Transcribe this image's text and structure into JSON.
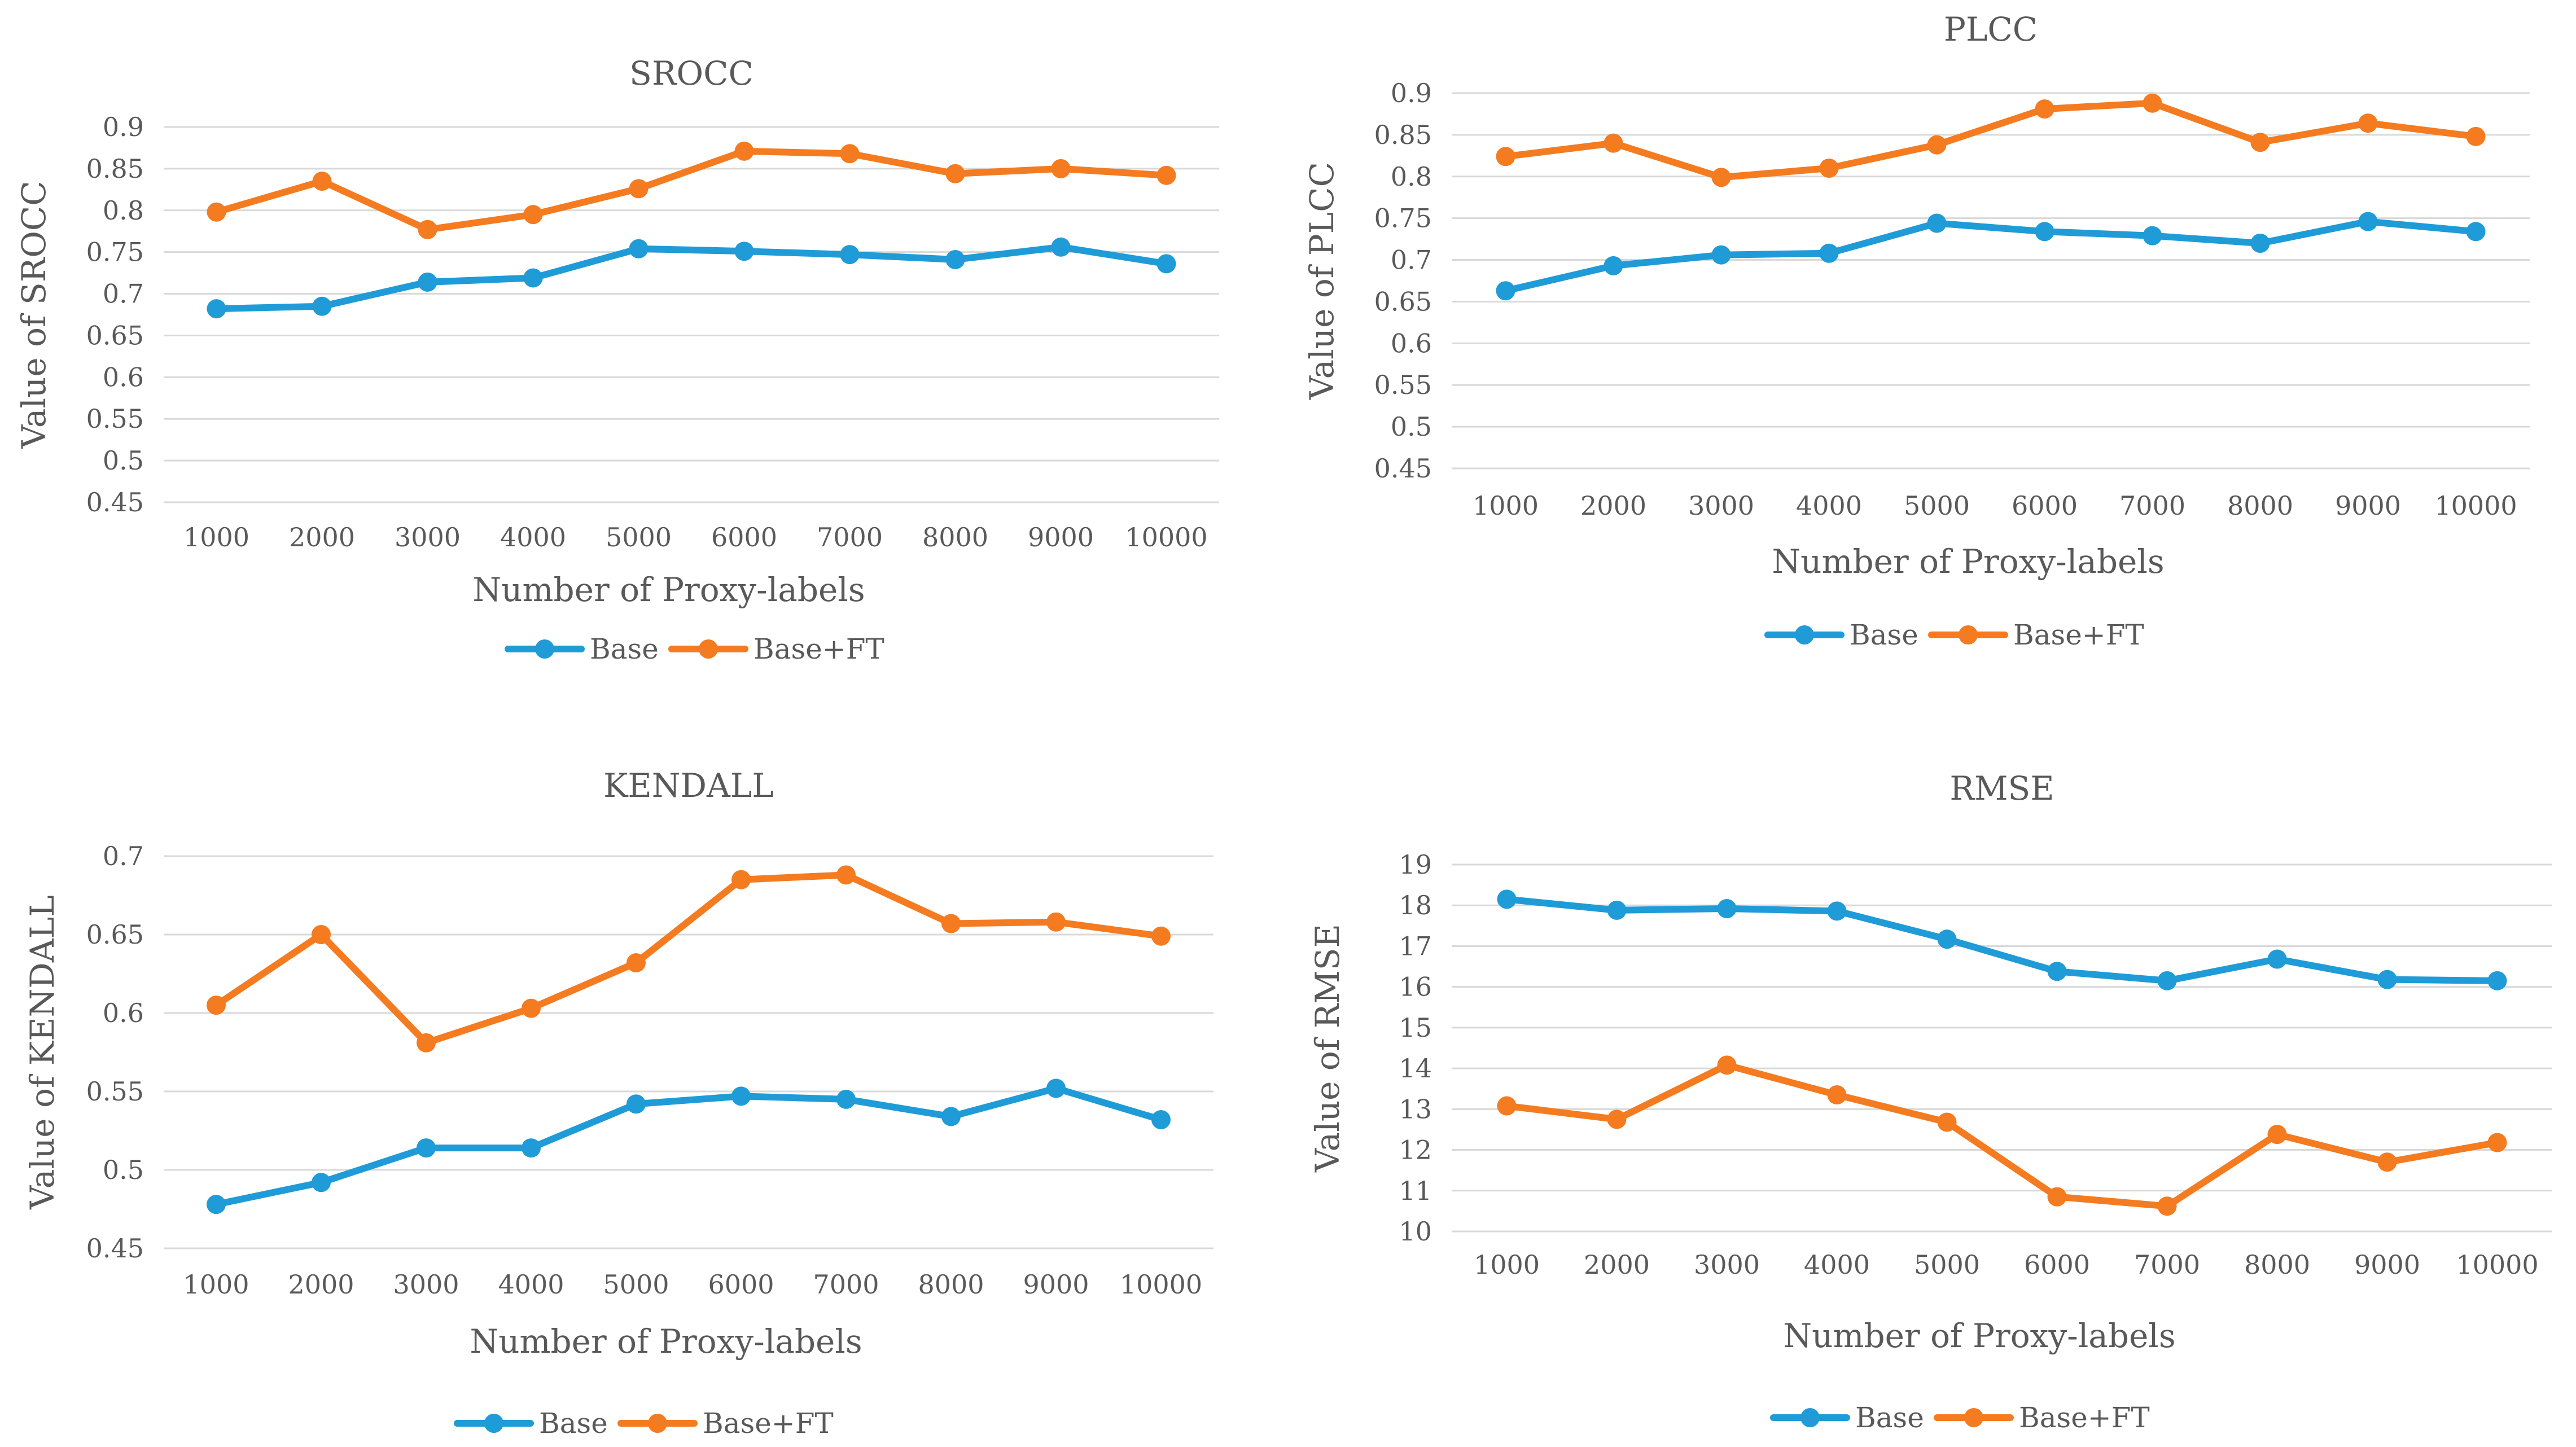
{
  "colors": {
    "base": "#1f9bd7",
    "base_ft": "#f47b20",
    "grid": "#d9d9d9",
    "text": "#595959"
  },
  "chart_data": [
    {
      "type": "line",
      "title": "SROCC",
      "xlabel": "Number of Proxy-labels",
      "ylabel": "Value of SROCC",
      "categories": [
        "1000",
        "2000",
        "3000",
        "4000",
        "5000",
        "6000",
        "7000",
        "8000",
        "9000",
        "10000"
      ],
      "ylim": [
        0.45,
        0.9
      ],
      "yticks": [
        "0.45",
        "0.5",
        "0.55",
        "0.6",
        "0.65",
        "0.7",
        "0.75",
        "0.8",
        "0.85",
        "0.9"
      ],
      "series": [
        {
          "name": "Base",
          "values": [
            0.682,
            0.685,
            0.714,
            0.719,
            0.754,
            0.751,
            0.747,
            0.741,
            0.756,
            0.736
          ]
        },
        {
          "name": "Base+FT",
          "values": [
            0.798,
            0.835,
            0.777,
            0.795,
            0.826,
            0.871,
            0.868,
            0.844,
            0.85,
            0.842
          ]
        }
      ],
      "legend": "bottom"
    },
    {
      "type": "line",
      "title": "PLCC",
      "xlabel": "Number of Proxy-labels",
      "ylabel": "Value of PLCC",
      "categories": [
        "1000",
        "2000",
        "3000",
        "4000",
        "5000",
        "6000",
        "7000",
        "8000",
        "9000",
        "10000"
      ],
      "ylim": [
        0.45,
        0.9
      ],
      "yticks": [
        "0.45",
        "0.5",
        "0.55",
        "0.6",
        "0.65",
        "0.7",
        "0.75",
        "0.8",
        "0.85",
        "0.9"
      ],
      "series": [
        {
          "name": "Base",
          "values": [
            0.663,
            0.693,
            0.706,
            0.708,
            0.744,
            0.734,
            0.729,
            0.72,
            0.746,
            0.734
          ]
        },
        {
          "name": "Base+FT",
          "values": [
            0.824,
            0.84,
            0.799,
            0.81,
            0.838,
            0.881,
            0.888,
            0.841,
            0.864,
            0.848
          ]
        }
      ],
      "legend": "bottom"
    },
    {
      "type": "line",
      "title": "KENDALL",
      "xlabel": "Number of Proxy-labels",
      "ylabel": "Value of KENDALL",
      "categories": [
        "1000",
        "2000",
        "3000",
        "4000",
        "5000",
        "6000",
        "7000",
        "8000",
        "9000",
        "10000"
      ],
      "ylim": [
        0.45,
        0.7
      ],
      "yticks": [
        "0.45",
        "0.5",
        "0.55",
        "0.6",
        "0.65",
        "0.7"
      ],
      "series": [
        {
          "name": "Base",
          "values": [
            0.478,
            0.492,
            0.514,
            0.514,
            0.542,
            0.547,
            0.545,
            0.534,
            0.552,
            0.532
          ]
        },
        {
          "name": "Base+FT",
          "values": [
            0.605,
            0.65,
            0.581,
            0.603,
            0.632,
            0.685,
            0.688,
            0.657,
            0.658,
            0.649
          ]
        }
      ],
      "legend": "bottom"
    },
    {
      "type": "line",
      "title": "RMSE",
      "xlabel": "Number of Proxy-labels",
      "ylabel": "Value of RMSE",
      "categories": [
        "1000",
        "2000",
        "3000",
        "4000",
        "5000",
        "6000",
        "7000",
        "8000",
        "9000",
        "10000"
      ],
      "ylim": [
        10,
        19
      ],
      "yticks": [
        "10",
        "11",
        "12",
        "13",
        "14",
        "15",
        "16",
        "17",
        "18",
        "19"
      ],
      "series": [
        {
          "name": "Base",
          "values": [
            18.15,
            17.88,
            17.92,
            17.86,
            17.17,
            16.38,
            16.15,
            16.68,
            16.18,
            16.15
          ]
        },
        {
          "name": "Base+FT",
          "values": [
            13.08,
            12.75,
            14.08,
            13.35,
            12.68,
            10.85,
            10.62,
            12.38,
            11.7,
            12.18
          ]
        }
      ],
      "legend": "bottom"
    }
  ]
}
